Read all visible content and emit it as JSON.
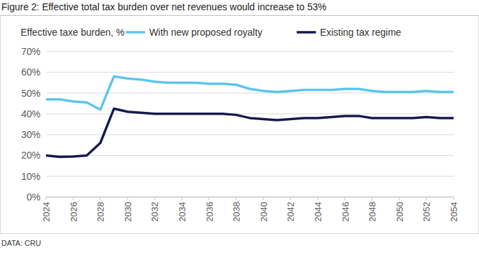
{
  "chart_data": {
    "type": "line",
    "title": "Figure 2: Effective total tax burden over net revenues would increase to 53%",
    "y_label": "Effective taxe burden, %",
    "source": "DATA: CRU",
    "x": [
      2024,
      2025,
      2026,
      2027,
      2028,
      2029,
      2030,
      2031,
      2032,
      2033,
      2034,
      2035,
      2036,
      2037,
      2038,
      2039,
      2040,
      2041,
      2042,
      2043,
      2044,
      2045,
      2046,
      2047,
      2048,
      2049,
      2050,
      2051,
      2052,
      2053,
      2054
    ],
    "series": [
      {
        "name": "With new proposed royalty",
        "color": "#5bc4ee",
        "values": [
          47,
          47,
          46,
          45.5,
          42,
          58,
          57,
          56.5,
          55.5,
          55,
          55,
          55,
          54.5,
          54.5,
          54,
          52,
          51,
          50.5,
          51,
          51.5,
          51.5,
          51.5,
          52,
          52,
          51,
          50.5,
          50.5,
          50.5,
          51,
          50.5,
          50.5
        ]
      },
      {
        "name": "Existing tax regime",
        "color": "#16194d",
        "values": [
          20,
          19.3,
          19.5,
          20,
          26,
          42.5,
          41,
          40.5,
          40,
          40,
          40,
          40,
          40,
          40,
          39.5,
          38,
          37.5,
          37,
          37.5,
          38,
          38,
          38.5,
          39,
          39,
          38,
          38,
          38,
          38,
          38.5,
          38,
          38
        ]
      }
    ],
    "xlim": [
      2024,
      2054
    ],
    "xticks": [
      2024,
      2026,
      2028,
      2030,
      2032,
      2034,
      2036,
      2038,
      2040,
      2042,
      2044,
      2046,
      2048,
      2050,
      2052,
      2054
    ],
    "ylim": [
      0,
      70
    ],
    "yticks": [
      {
        "value": 0,
        "label": "0%"
      },
      {
        "value": 10,
        "label": "10%"
      },
      {
        "value": 20,
        "label": "20%"
      },
      {
        "value": 30,
        "label": "30%"
      },
      {
        "value": 40,
        "label": "40%"
      },
      {
        "value": 50,
        "label": "50%"
      },
      {
        "value": 60,
        "label": "60%"
      },
      {
        "value": 70,
        "label": "70%"
      }
    ],
    "grid": true,
    "legend": "top"
  }
}
